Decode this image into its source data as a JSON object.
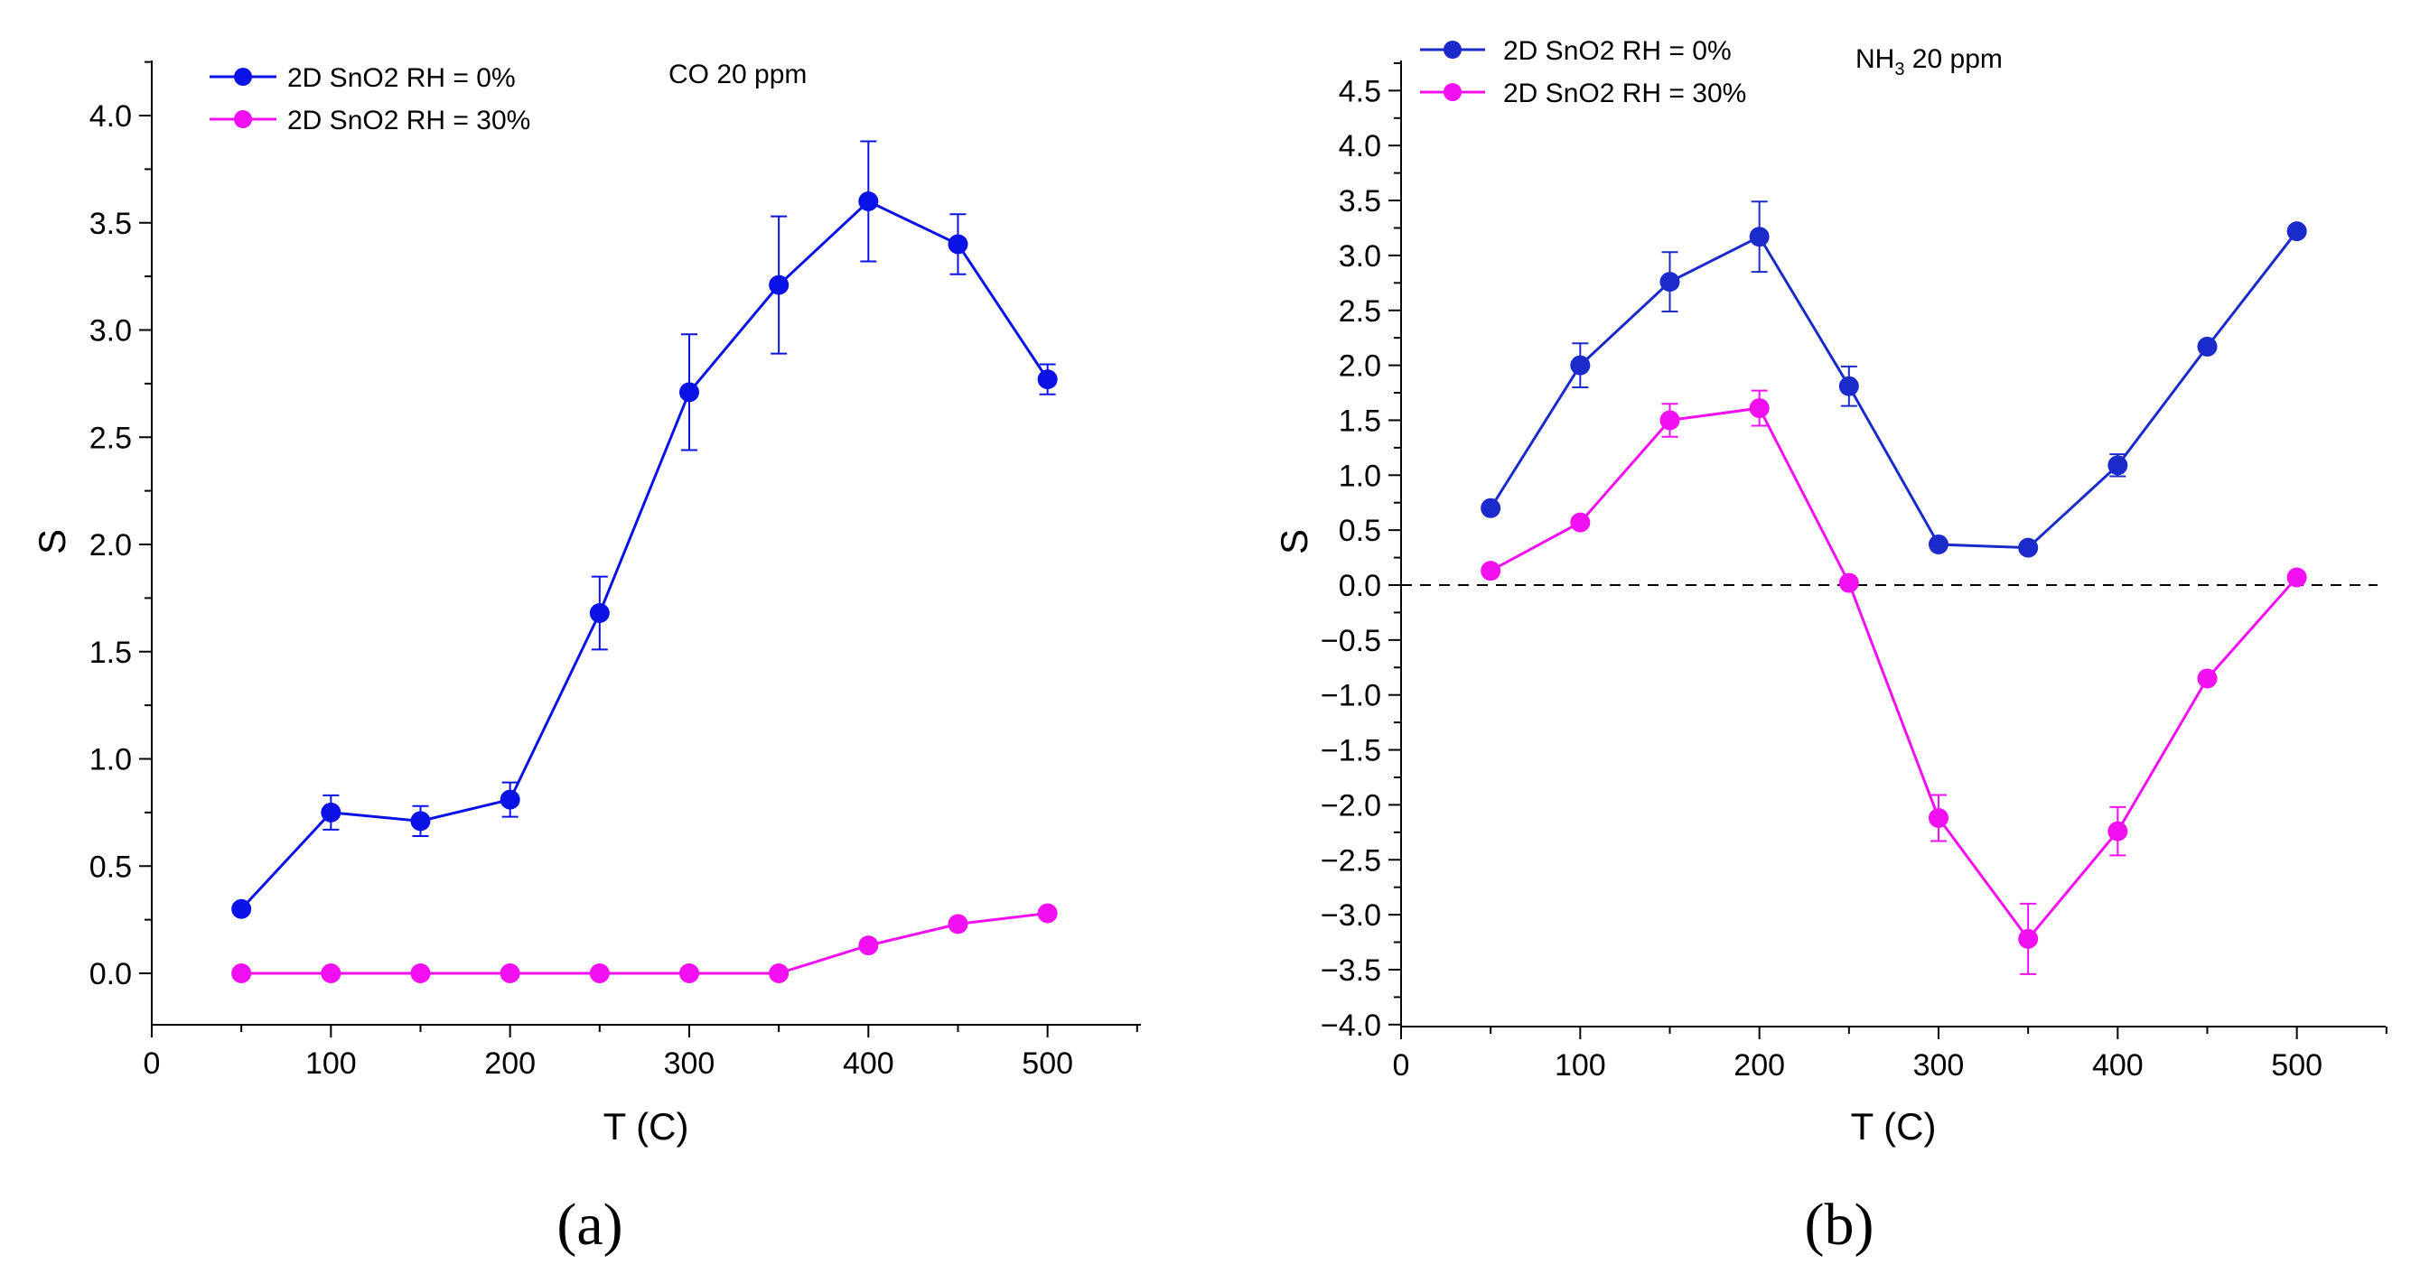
{
  "chart_data": [
    {
      "type": "line",
      "panel_label": "(a)",
      "annotation": "CO 20 ppm",
      "xlabel": "T (C)",
      "ylabel": "S",
      "xlim": [
        0,
        550
      ],
      "ylim": [
        -0.25,
        4.25
      ],
      "xticks": [
        0,
        100,
        200,
        300,
        400,
        500
      ],
      "yticks": [
        0.0,
        0.5,
        1.0,
        1.5,
        2.0,
        2.5,
        3.0,
        3.5,
        4.0
      ],
      "ytick_labels": [
        "0.0",
        "0.5",
        "1.0",
        "1.5",
        "2.0",
        "2.5",
        "3.0",
        "3.5",
        "4.0"
      ],
      "legend_position": "top-left",
      "reference_line": null,
      "series": [
        {
          "name": "2D SnO2 RH = 0%",
          "color": "#0a12e6",
          "x": [
            50,
            100,
            150,
            200,
            250,
            300,
            350,
            400,
            450,
            500
          ],
          "y": [
            0.3,
            0.75,
            0.71,
            0.81,
            1.68,
            2.71,
            3.21,
            3.6,
            3.4,
            2.77
          ],
          "err": [
            0,
            0.08,
            0.07,
            0.08,
            0.17,
            0.27,
            0.32,
            0.28,
            0.14,
            0.07
          ]
        },
        {
          "name": "2D SnO2 RH = 30%",
          "color": "#f20ff2",
          "x": [
            50,
            100,
            150,
            200,
            250,
            300,
            350,
            400,
            450,
            500
          ],
          "y": [
            0.0,
            0.0,
            0.0,
            0.0,
            0.0,
            0.0,
            0.0,
            0.13,
            0.23,
            0.28
          ],
          "err": [
            0,
            0,
            0,
            0,
            0,
            0,
            0,
            0,
            0,
            0
          ]
        }
      ]
    },
    {
      "type": "line",
      "panel_label": "(b)",
      "annotation": "NH",
      "annotation_sub": "3",
      "annotation_suffix": " 20 ppm",
      "xlabel": "T (C)",
      "ylabel": "S",
      "xlim": [
        0,
        550
      ],
      "ylim": [
        -4.0,
        4.8
      ],
      "xticks": [
        0,
        100,
        200,
        300,
        400,
        500
      ],
      "yticks": [
        -4.0,
        -3.5,
        -3.0,
        -2.5,
        -2.0,
        -1.5,
        -1.0,
        -0.5,
        0.0,
        0.5,
        1.0,
        1.5,
        2.0,
        2.5,
        3.0,
        3.5,
        4.0,
        4.5
      ],
      "ytick_labels": [
        "−4.0",
        "−3.5",
        "−3.0",
        "−2.5",
        "−2.0",
        "−1.5",
        "−1.0",
        "−0.5",
        "0.0",
        "0.5",
        "1.0",
        "1.5",
        "2.0",
        "2.5",
        "3.0",
        "3.5",
        "4.0",
        "4.5"
      ],
      "legend_position": "top-left",
      "reference_line": 0,
      "series": [
        {
          "name": "2D SnO2 RH = 0%",
          "color": "#1a2bc9",
          "x": [
            50,
            100,
            150,
            200,
            250,
            300,
            350,
            400,
            450,
            500
          ],
          "y": [
            0.7,
            2.0,
            2.76,
            3.17,
            1.81,
            0.37,
            0.34,
            1.09,
            2.17,
            3.22
          ],
          "err": [
            0,
            0.2,
            0.27,
            0.32,
            0.18,
            0,
            0,
            0.1,
            0,
            0
          ]
        },
        {
          "name": "2D SnO2 RH = 30%",
          "color": "#f20ff2",
          "x": [
            50,
            100,
            150,
            200,
            250,
            300,
            350,
            400,
            450,
            500
          ],
          "y": [
            0.13,
            0.57,
            1.5,
            1.61,
            0.02,
            -2.12,
            -3.22,
            -2.24,
            -0.85,
            0.07
          ],
          "err": [
            0,
            0,
            0.15,
            0.16,
            0,
            0.21,
            0.32,
            0.22,
            0,
            0
          ]
        }
      ]
    }
  ]
}
